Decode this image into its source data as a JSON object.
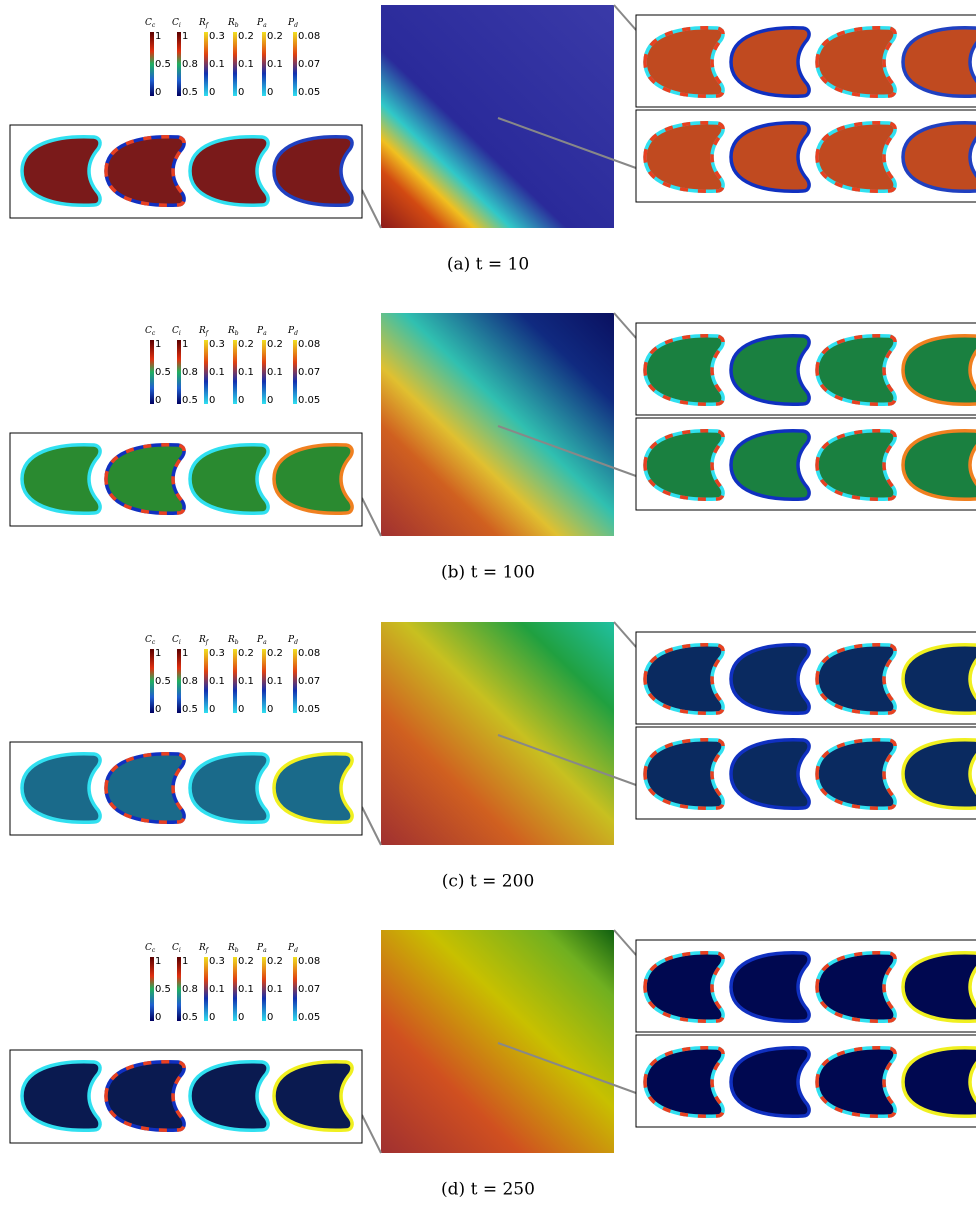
{
  "colorbars": [
    {
      "label": "C",
      "subscript": "c",
      "ticks": [
        "1",
        "0.5",
        "0"
      ]
    },
    {
      "label": "C",
      "subscript": "i",
      "ticks": [
        "1",
        "0.8",
        "0.5"
      ]
    },
    {
      "label": "R",
      "subscript": "f",
      "ticks": [
        "0.3",
        "0.1",
        "0"
      ]
    },
    {
      "label": "R",
      "subscript": "b",
      "ticks": [
        "0.2",
        "0.1",
        "0"
      ]
    },
    {
      "label": "P",
      "subscript": "a",
      "ticks": [
        "0.2",
        "0.1",
        "0"
      ]
    },
    {
      "label": "P",
      "subscript": "d",
      "ticks": [
        "0.08",
        "0.07",
        "0.05"
      ]
    }
  ],
  "panels": [
    {
      "caption": "(a) t = 10",
      "heatmap": [
        [
          "0",
          "#8b1a1a"
        ],
        [
          "0.13",
          "#d24a12"
        ],
        [
          "0.2",
          "#f0c020"
        ],
        [
          "0.28",
          "#30c8c8"
        ],
        [
          "0.4",
          "#2a2a9a"
        ],
        [
          "1",
          "#3a3aa8"
        ]
      ],
      "left_fill": "#7a1a1a",
      "right_fill": "#c04a20",
      "last_edge": "#2040c0"
    },
    {
      "caption": "(b) t = 100",
      "heatmap": [
        [
          "0",
          "#a03030"
        ],
        [
          "0.25",
          "#d06020"
        ],
        [
          "0.38",
          "#e0c030"
        ],
        [
          "0.55",
          "#30c0b0"
        ],
        [
          "0.8",
          "#102a80"
        ],
        [
          "1",
          "#0a1060"
        ]
      ],
      "left_fill": "#2a8a30",
      "right_fill": "#1a8040",
      "last_edge": "#f08020"
    },
    {
      "caption": "(c) t = 200",
      "heatmap": [
        [
          "0",
          "#a03030"
        ],
        [
          "0.3",
          "#d06020"
        ],
        [
          "0.55",
          "#c8c020"
        ],
        [
          "0.8",
          "#20a040"
        ],
        [
          "1",
          "#20c0a0"
        ]
      ],
      "left_fill": "#1a6a8a",
      "right_fill": "#0a2a60",
      "last_edge": "#f0f020"
    },
    {
      "caption": "(d) t = 250",
      "heatmap": [
        [
          "0",
          "#a03030"
        ],
        [
          "0.3",
          "#d05020"
        ],
        [
          "0.6",
          "#c8c000"
        ],
        [
          "0.85",
          "#70b020"
        ],
        [
          "1",
          "#106010"
        ]
      ],
      "left_fill": "#0a1a50",
      "right_fill": "#000850",
      "last_edge": "#f0f020"
    }
  ]
}
